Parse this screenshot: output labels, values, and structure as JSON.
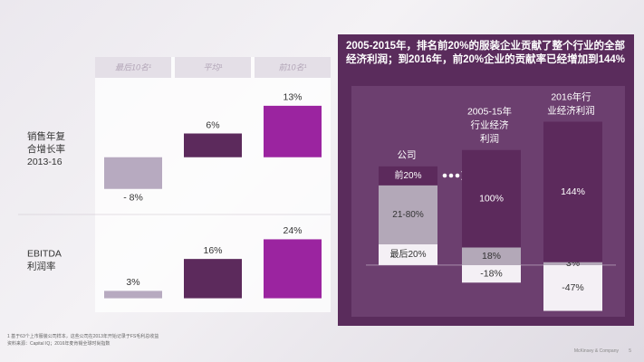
{
  "chart_data": [
    {
      "type": "bar",
      "categories": [
        "最后10名¹",
        "平均¹",
        "前10名¹"
      ],
      "colors": [
        "#b7aac0",
        "#5c2a5c",
        "#9b24a0"
      ],
      "series": [
        {
          "name": "销售年复\n合增长率\n2013-16",
          "values": [
            -8,
            6,
            13
          ],
          "value_labels": [
            "- 8%",
            "6%",
            "13%"
          ],
          "ylim": [
            -14,
            18
          ]
        },
        {
          "name": "EBITDA\n利润率",
          "values": [
            3,
            16,
            24
          ],
          "value_labels": [
            "3%",
            "16%",
            "24%"
          ],
          "ylim": [
            -2,
            33
          ]
        }
      ]
    },
    {
      "type": "stacked_bar",
      "title": "2005-2015年，排名前20%的服装企业贡献了整个行业的全部经济利润；到2016年，前20%企业的贡献率已经增加到144%",
      "categories": [
        "公司",
        "2005-15年\n行业经济\n利润",
        "2016年行\n业经济利润"
      ],
      "ylim": [
        -53,
        179
      ],
      "series": [
        {
          "name": "前20%",
          "color": "#5c2a5c",
          "values": [
            null,
            100,
            144
          ],
          "value_labels": [
            null,
            "100%",
            "144%"
          ]
        },
        {
          "name": "21-80%",
          "color": "#b3a8b8",
          "values": [
            null,
            18,
            3
          ],
          "value_labels": [
            null,
            "18%",
            "3%"
          ]
        },
        {
          "name": "最后20%",
          "color": "#f4f0f5",
          "values": [
            null,
            -18,
            -47
          ],
          "value_labels": [
            null,
            "-18%",
            "-47%"
          ]
        }
      ]
    }
  ],
  "footnotes": [
    "1 基于63个上市服装公司样本，这些公司在2013年开始记录于FS毛利总收益",
    "资料来源：Capital IQ；2016年麦肯锡全球时尚指数"
  ],
  "footer": "McKinsey & Company",
  "page_number": 5
}
